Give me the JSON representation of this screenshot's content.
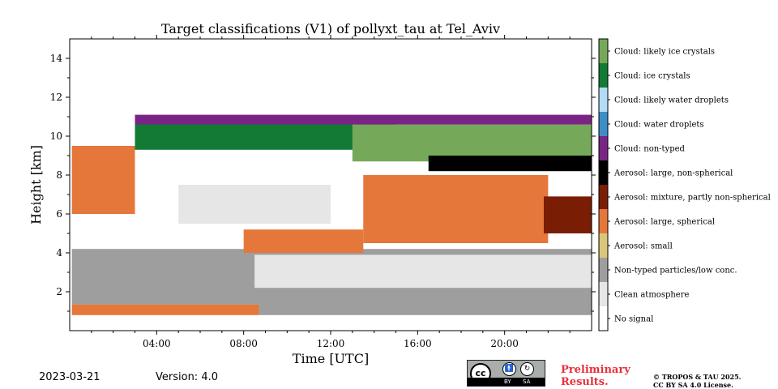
{
  "chart_data": {
    "type": "heatmap",
    "title": "Target classifications (V1) of pollyxt_tau at Tel_Aviv",
    "xlabel": "Time [UTC]",
    "ylabel": "Height [km]",
    "x_range_hours": [
      0,
      24
    ],
    "ylim": [
      0,
      15
    ],
    "x_ticks": [
      {
        "hour": 4,
        "label": "04:00"
      },
      {
        "hour": 8,
        "label": "08:00"
      },
      {
        "hour": 12,
        "label": "12:00"
      },
      {
        "hour": 16,
        "label": "16:00"
      },
      {
        "hour": 20,
        "label": "20:00"
      }
    ],
    "y_ticks": [
      {
        "value": 2,
        "label": "2"
      },
      {
        "value": 4,
        "label": "4"
      },
      {
        "value": 6,
        "label": "6"
      },
      {
        "value": 8,
        "label": "8"
      },
      {
        "value": 10,
        "label": "10"
      },
      {
        "value": 12,
        "label": "12"
      },
      {
        "value": 14,
        "label": "14"
      }
    ],
    "classes": [
      {
        "label": "Cloud: likely ice crystals",
        "color": "#76a85a"
      },
      {
        "label": "Cloud: ice crystals",
        "color": "#137a36"
      },
      {
        "label": "Cloud: likely water droplets",
        "color": "#b3dcf4"
      },
      {
        "label": "Cloud: water droplets",
        "color": "#3d8ec8"
      },
      {
        "label": "Cloud: non-typed",
        "color": "#7a2585"
      },
      {
        "label": "Aerosol: large, non-spherical",
        "color": "#000000"
      },
      {
        "label": "Aerosol: mixture, partly non-spherical",
        "color": "#7a1d05"
      },
      {
        "label": "Aerosol: large, spherical",
        "color": "#e6773a"
      },
      {
        "label": "Aerosol: small",
        "color": "#d9c67a"
      },
      {
        "label": "Non-typed particles/low conc.",
        "color": "#9e9e9e"
      },
      {
        "label": "Clean atmosphere",
        "color": "#e6e6e6"
      },
      {
        "label": "No signal",
        "color": "#ffffff"
      }
    ],
    "layers": [
      {
        "class": "Aerosol: large, spherical",
        "start_h": 0.1,
        "end_h": 8.7,
        "bottom_km": 0.8,
        "top_km": 1.35
      },
      {
        "class": "Non-typed particles/low conc.",
        "start_h": 8.7,
        "end_h": 24,
        "bottom_km": 0.8,
        "top_km": 1.5
      },
      {
        "class": "Non-typed particles/low conc.",
        "start_h": 0.1,
        "end_h": 24,
        "bottom_km": 1.35,
        "top_km": 4.2
      },
      {
        "class": "Clean atmosphere",
        "start_h": 8.5,
        "end_h": 24,
        "bottom_km": 2.2,
        "top_km": 3.9
      },
      {
        "class": "Aerosol: large, spherical",
        "start_h": 8.0,
        "end_h": 13.5,
        "bottom_km": 4.0,
        "top_km": 5.2
      },
      {
        "class": "Aerosol: large, spherical",
        "start_h": 0.1,
        "end_h": 3.0,
        "bottom_km": 6.0,
        "top_km": 9.5
      },
      {
        "class": "Aerosol: large, spherical",
        "start_h": 13.5,
        "end_h": 22.0,
        "bottom_km": 4.5,
        "top_km": 8.0
      },
      {
        "class": "Clean atmosphere",
        "start_h": 5.0,
        "end_h": 12.0,
        "bottom_km": 5.5,
        "top_km": 7.5
      },
      {
        "class": "Aerosol: mixture, partly non-spherical",
        "start_h": 21.8,
        "end_h": 24,
        "bottom_km": 5.0,
        "top_km": 6.9
      },
      {
        "class": "Cloud: ice crystals",
        "start_h": 3.0,
        "end_h": 15.0,
        "bottom_km": 9.3,
        "top_km": 11.0
      },
      {
        "class": "Cloud: likely ice crystals",
        "start_h": 13.0,
        "end_h": 24,
        "bottom_km": 8.7,
        "top_km": 10.6
      },
      {
        "class": "Aerosol: large, non-spherical",
        "start_h": 16.5,
        "end_h": 24,
        "bottom_km": 8.2,
        "top_km": 9.0
      },
      {
        "class": "Cloud: non-typed",
        "start_h": 3.0,
        "end_h": 24,
        "bottom_km": 10.6,
        "top_km": 11.1
      }
    ]
  },
  "footer": {
    "date": "2023-03-21",
    "version": "Version: 4.0",
    "preliminary_line1": "Preliminary",
    "preliminary_line2": "Results.",
    "copyright_line1": "© TROPOS & TAU 2025.",
    "copyright_line2": "CC BY SA 4.0 License.",
    "cc_text": "cc",
    "by_text": "BY",
    "sa_text": "SA"
  }
}
